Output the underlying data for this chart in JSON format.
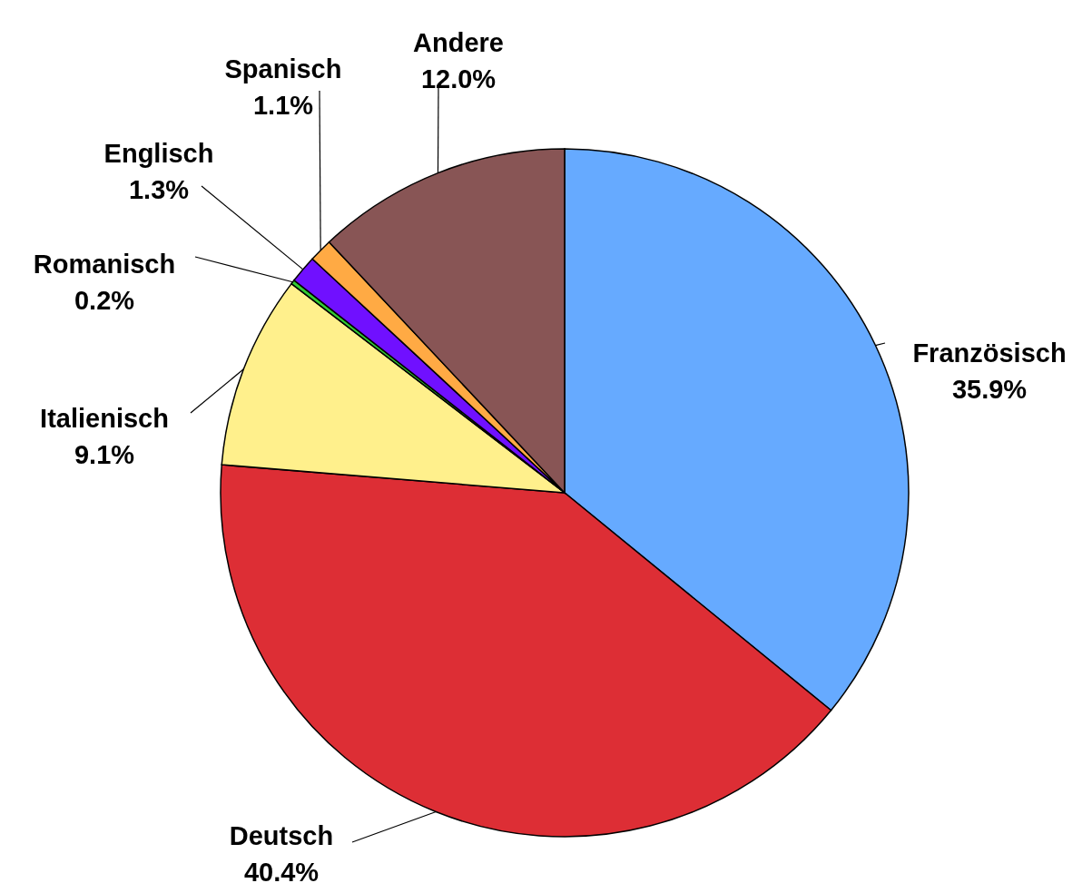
{
  "chart_data": {
    "type": "pie",
    "categories": [
      "Französisch",
      "Deutsch",
      "Italienisch",
      "Romanisch",
      "Englisch",
      "Spanisch",
      "Andere"
    ],
    "values": [
      35.9,
      40.4,
      9.1,
      0.2,
      1.3,
      1.1,
      12.0
    ],
    "colors": [
      "#66aaff",
      "#dd2e35",
      "#fff08c",
      "#33cc33",
      "#7010ff",
      "#ffaa44",
      "#885555"
    ],
    "value_labels": [
      "35.9%",
      "40.4%",
      "9.1%",
      "0.2%",
      "1.3%",
      "1.1%",
      "12.0%"
    ]
  }
}
